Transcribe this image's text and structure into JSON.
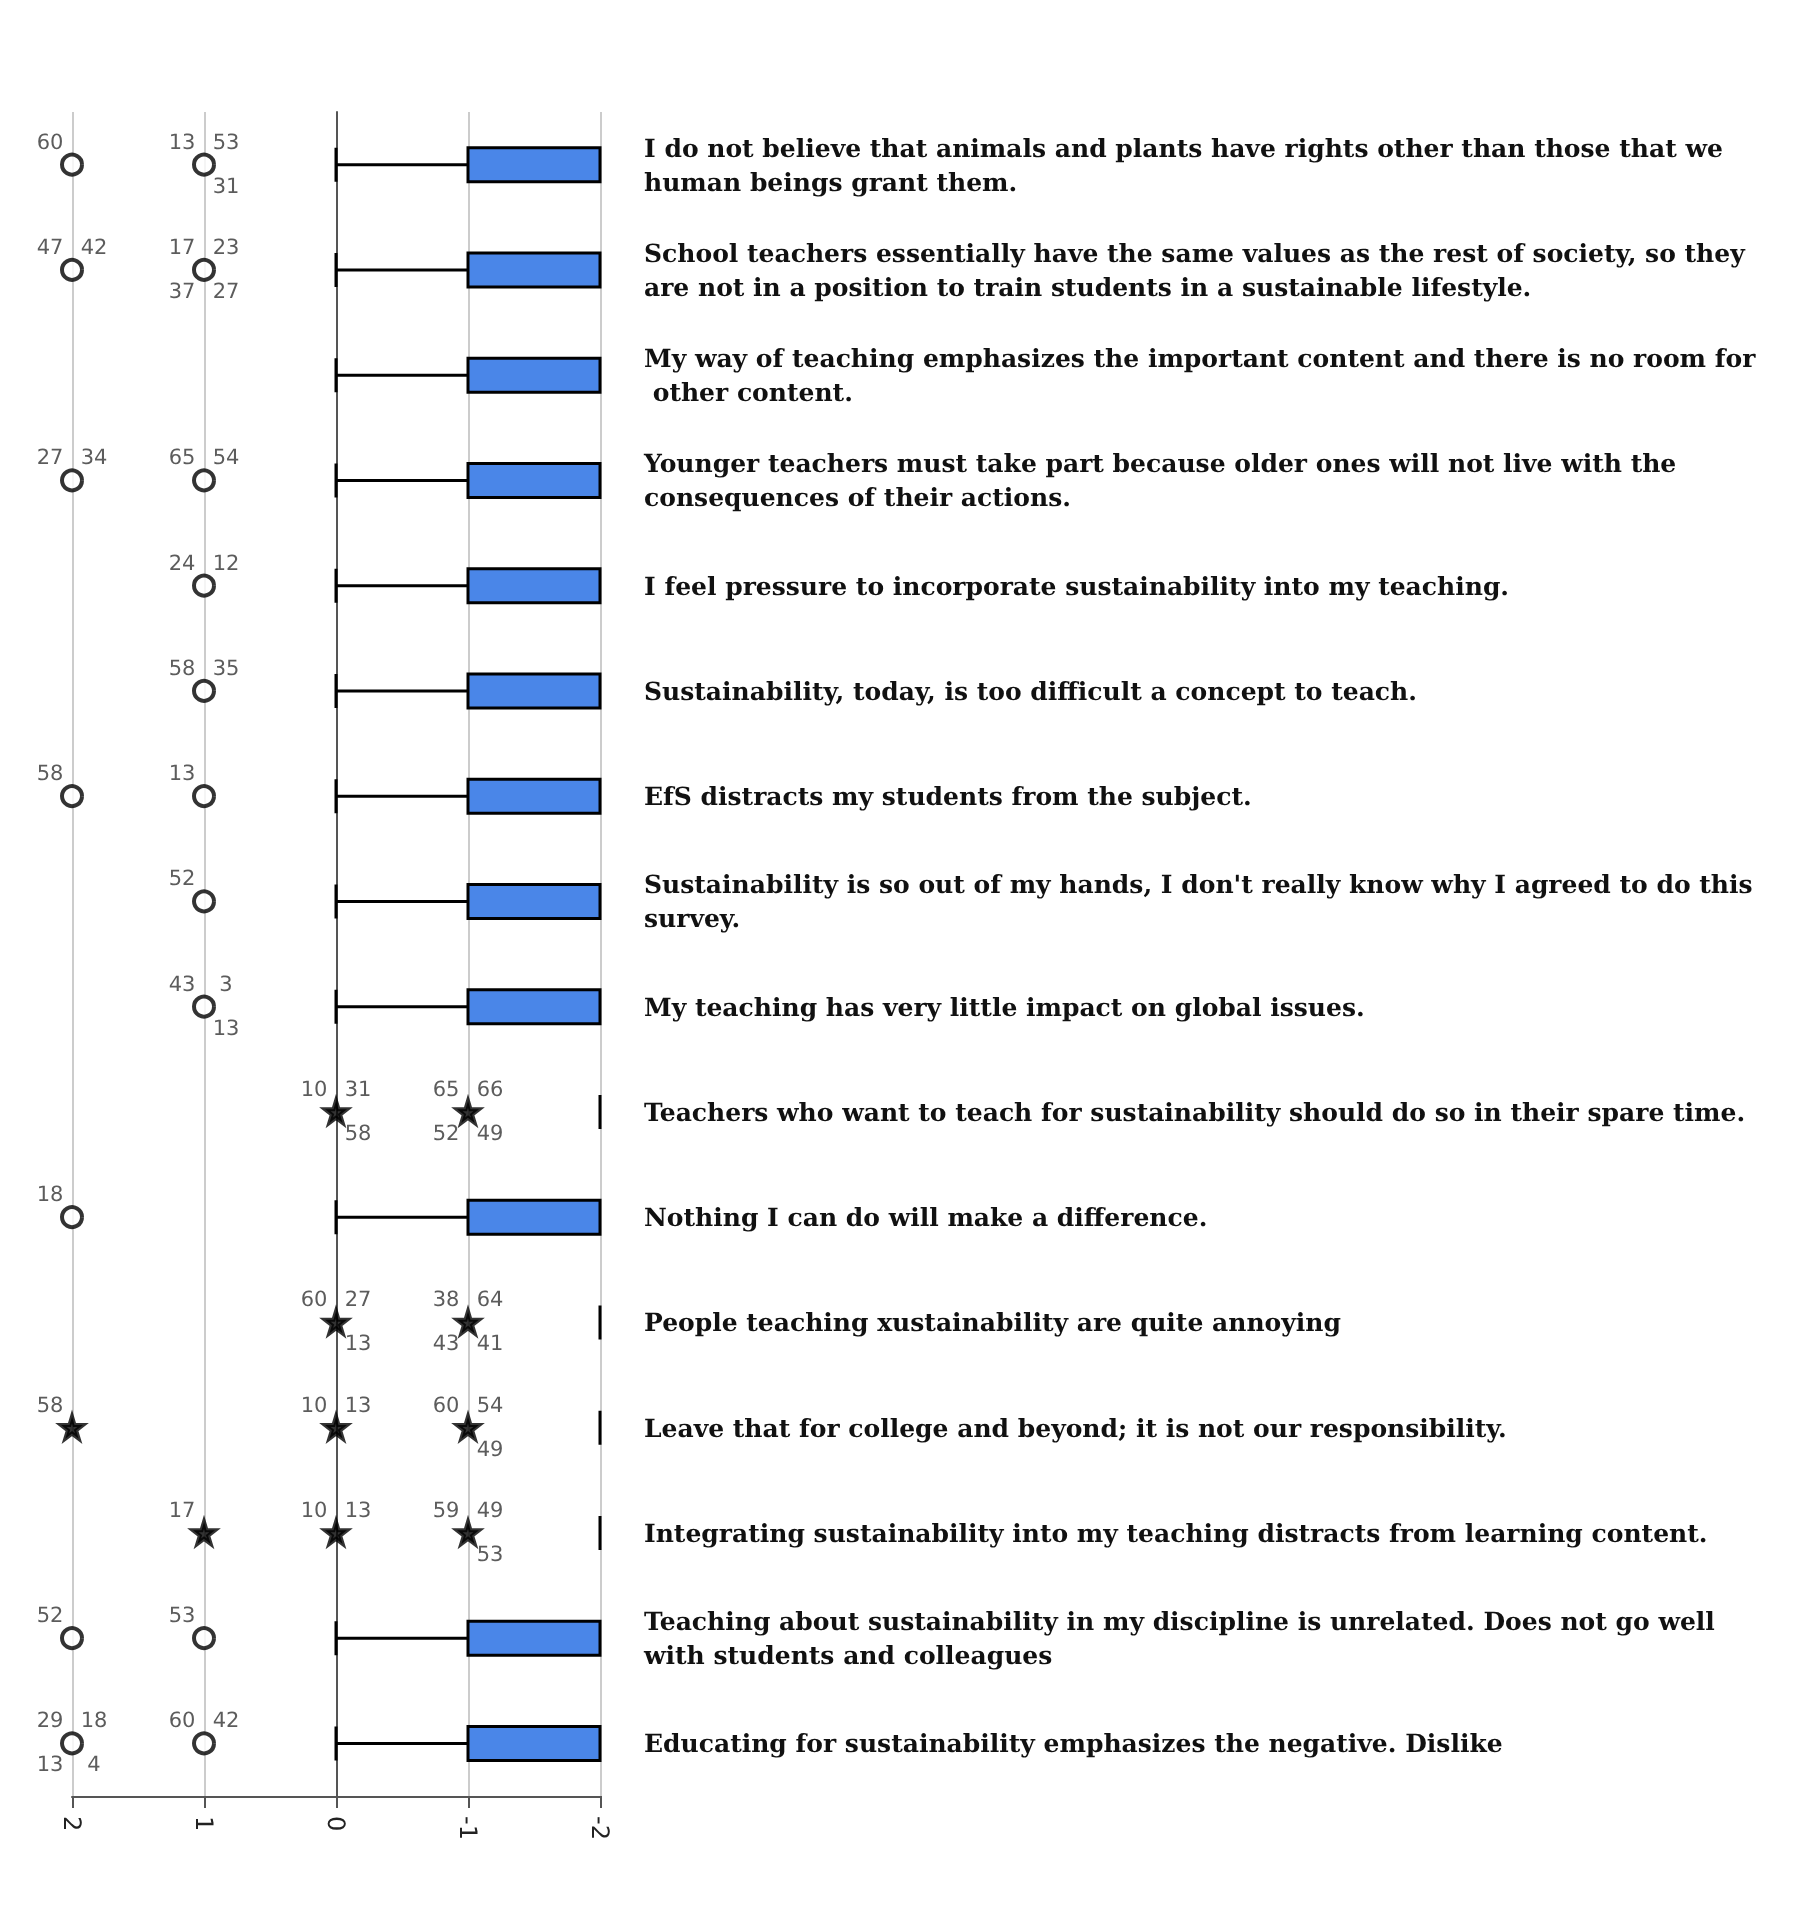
{
  "chart_data": {
    "type": "box",
    "orientation": "horizontal",
    "colors": [
      "#4a86e8",
      "#4a86e8",
      "#4a86e8",
      "#4a86e8",
      "#4a86e8",
      "#4a86e8",
      "#4a86e8",
      "#4a86e8",
      "#4a86e8",
      "#000000",
      "#4a86e8",
      "#000000",
      "#000000",
      "#000000",
      "#4a86e8",
      "#4a86e8"
    ],
    "grid": "x",
    "categories": [
      "I do not believe that animals and plants have rights other than those that we human beings grant them.",
      "School teachers essentially have the same values as the rest of society, so they are not in a position to train students in a sustainable lifestyle.",
      "My way of teaching emphasizes the important content and there is no room for other content.",
      "Younger teachers must take part because older ones will not live with the consequences of their actions.",
      "I feel pressure to incorporate sustainability into my teaching.",
      "Sustainability, today, is too difficult a concept to teach.",
      "EfS distracts my students from the subject.",
      "Sustainability is so out of my hands, I don't really know why I agreed to do this survey.",
      "My teaching has very little impact on global issues.",
      "Teachers who want to teach for sustainability should do so in their spare time.",
      "Nothing I can do will make a difference.",
      "People teaching xustainability are quite annoying",
      "Leave that for college and beyond; it is not our responsibility.",
      "Integrating sustainability into my teaching distracts from learning content.",
      "Teaching about sustainability in my discipline is unrelated. Does not go well with students and colleagues",
      "Educating for sustainability emphasizes the negative. Dislike"
    ],
    "xlim": [
      2,
      -2
    ],
    "xticks": [
      2,
      1,
      0,
      -1,
      -2
    ],
    "boxes": [
      {
        "low": -2,
        "q1": -2,
        "median": -2,
        "q3": -1,
        "high": 0
      },
      {
        "low": -2,
        "q1": -2,
        "median": -2,
        "q3": -1,
        "high": 0
      },
      {
        "low": -2,
        "q1": -2,
        "median": -2,
        "q3": -1,
        "high": 0
      },
      {
        "low": -2,
        "q1": -2,
        "median": -2,
        "q3": -1,
        "high": 0
      },
      {
        "low": -2,
        "q1": -2,
        "median": -2,
        "q3": -1,
        "high": 0
      },
      {
        "low": -2,
        "q1": -2,
        "median": -2,
        "q3": -1,
        "high": 0
      },
      {
        "low": -2,
        "q1": -2,
        "median": -2,
        "q3": -1,
        "high": 0
      },
      {
        "low": -2,
        "q1": -2,
        "median": -2,
        "q3": -1,
        "high": 0
      },
      {
        "low": -2,
        "q1": -2,
        "median": -2,
        "q3": -1,
        "high": 0
      },
      {
        "low": -2,
        "q1": -2,
        "median": -2,
        "q3": -2,
        "high": -2
      },
      {
        "low": -2,
        "q1": -2,
        "median": -2,
        "q3": -1,
        "high": 0
      },
      {
        "low": -2,
        "q1": -2,
        "median": -2,
        "q3": -2,
        "high": -2
      },
      {
        "low": -2,
        "q1": -2,
        "median": -2,
        "q3": -2,
        "high": -2
      },
      {
        "low": -2,
        "q1": -2,
        "median": -2,
        "q3": -2,
        "high": -2
      },
      {
        "low": -2,
        "q1": -2,
        "median": -2,
        "q3": -1,
        "high": 0
      },
      {
        "low": -2,
        "q1": -2,
        "median": -2,
        "q3": -1,
        "high": 0
      }
    ],
    "series": [
      {
        "type": "scatter",
        "marker": "circle",
        "color": "#000000",
        "x": [
          "I do not believe that animals and plants have rights other than those that we human beings grant them.",
          "I do not believe that animals and plants have rights other than those that we human beings grant them.",
          "School teachers essentially have the same values as the rest of society, so they are not in a position to train students in a sustainable lifestyle.",
          "School teachers essentially have the same values as the rest of society, so they are not in a position to train students in a sustainable lifestyle.",
          "Younger teachers must take part because older ones will not live with the consequences of their actions.",
          "Younger teachers must take part because older ones will not live with the consequences of their actions.",
          "I feel pressure to incorporate sustainability into my teaching.",
          "Sustainability, today, is too difficult a concept to teach.",
          "EfS distracts my students from the subject.",
          "EfS distracts my students from the subject.",
          "Sustainability is so out of my hands, I don't really know why I agreed to do this survey.",
          "My teaching has very little impact on global issues.",
          "Nothing I can do will make a difference.",
          "Teaching about sustainability in my discipline is unrelated. Does not go well with students and colleagues",
          "Teaching about sustainability in my discipline is unrelated. Does not go well with students and colleagues",
          "Educating for sustainability emphasizes the negative. Dislike",
          "Educating for sustainability emphasizes the negative. Dislike"
        ],
        "values": [
          2,
          1,
          2,
          1,
          2,
          1,
          1,
          1,
          2,
          1,
          1,
          1,
          2,
          2,
          1,
          2,
          1
        ]
      },
      {
        "type": "scatter",
        "marker": "star",
        "color": "#000000",
        "x": [
          "Teachers who want to teach for sustainability should do so in their spare time.",
          "Teachers who want to teach for sustainability should do so in their spare time.",
          "People teaching xustainability are quite annoying",
          "People teaching xustainability are quite annoying",
          "Leave that for college and beyond; it is not our responsibility.",
          "Leave that for college and beyond; it is not our responsibility.",
          "Leave that for college and beyond; it is not our responsibility.",
          "Integrating sustainability into my teaching distracts from learning content.",
          "Integrating sustainability into my teaching distracts from learning content.",
          "Integrating sustainability into my teaching distracts from learning content."
        ],
        "values": [
          0,
          -1,
          0,
          -1,
          2,
          0,
          -1,
          1,
          0,
          -1
        ]
      }
    ],
    "annotations": [
      {
        "text": "60",
        "x": 2,
        "y": "I do not believe that animals and plants have rights other than those that we human beings grant them."
      },
      {
        "text": "13",
        "x": 1,
        "y": "I do not believe that animals and plants have rights other than those that we human beings grant them."
      },
      {
        "text": "53",
        "x": 1,
        "y": "I do not believe that animals and plants have rights other than those that we human beings grant them."
      },
      {
        "text": "31",
        "x": 1,
        "y": "I do not believe that animals and plants have rights other than those that we human beings grant them."
      },
      {
        "text": "47",
        "x": 2,
        "y": "School teachers essentially have the same values as the rest of society, so they are not in a position to train students in a sustainable lifestyle."
      },
      {
        "text": "42",
        "x": 2,
        "y": "School teachers essentially have the same values as the rest of society, so they are not in a position to train students in a sustainable lifestyle."
      },
      {
        "text": "17",
        "x": 1,
        "y": "School teachers essentially have the same values as the rest of society, so they are not in a position to train students in a sustainable lifestyle."
      },
      {
        "text": "23",
        "x": 1,
        "y": "School teachers essentially have the same values as the rest of society, so they are not in a position to train students in a sustainable lifestyle."
      },
      {
        "text": "27",
        "x": 1,
        "y": "School teachers essentially have the same values as the rest of society, so they are not in a position to train students in a sustainable lifestyle."
      },
      {
        "text": "37",
        "x": 1,
        "y": "School teachers essentially have the same values as the rest of society, so they are not in a position to train students in a sustainable lifestyle."
      },
      {
        "text": "27",
        "x": 2,
        "y": "Younger teachers must take part because older ones will not live with the consequences of their actions."
      },
      {
        "text": "34",
        "x": 2,
        "y": "Younger teachers must take part because older ones will not live with the consequences of their actions."
      },
      {
        "text": "65",
        "x": 1,
        "y": "Younger teachers must take part because older ones will not live with the consequences of their actions."
      },
      {
        "text": "54",
        "x": 1,
        "y": "Younger teachers must take part because older ones will not live with the consequences of their actions."
      },
      {
        "text": "24",
        "x": 1,
        "y": "I feel pressure to incorporate sustainability into my teaching."
      },
      {
        "text": "12",
        "x": 1,
        "y": "I feel pressure to incorporate sustainability into my teaching."
      },
      {
        "text": "58",
        "x": 1,
        "y": "Sustainability, today, is too difficult a concept to teach."
      },
      {
        "text": "35",
        "x": 1,
        "y": "Sustainability, today, is too difficult a concept to teach."
      },
      {
        "text": "58",
        "x": 2,
        "y": "EfS distracts my students from the subject."
      },
      {
        "text": "13",
        "x": 1,
        "y": "EfS distracts my students from the subject."
      },
      {
        "text": "52",
        "x": 1,
        "y": "Sustainability is so out of my hands, I don't really know why I agreed to do this survey."
      },
      {
        "text": "43",
        "x": 1,
        "y": "My teaching has very little impact on global issues."
      },
      {
        "text": "3",
        "x": 1,
        "y": "My teaching has very little impact on global issues."
      },
      {
        "text": "13",
        "x": 1,
        "y": "My teaching has very little impact on global issues."
      },
      {
        "text": "10",
        "x": 0,
        "y": "Teachers who want to teach for sustainability should do so in their spare time."
      },
      {
        "text": "31",
        "x": 0,
        "y": "Teachers who want to teach for sustainability should do so in their spare time."
      },
      {
        "text": "58",
        "x": 0,
        "y": "Teachers who want to teach for sustainability should do so in their spare time."
      },
      {
        "text": "65",
        "x": -1,
        "y": "Teachers who want to teach for sustainability should do so in their spare time."
      },
      {
        "text": "66",
        "x": -1,
        "y": "Teachers who want to teach for sustainability should do so in their spare time."
      },
      {
        "text": "49",
        "x": -1,
        "y": "Teachers who want to teach for sustainability should do so in their spare time."
      },
      {
        "text": "52",
        "x": -1,
        "y": "Teachers who want to teach for sustainability should do so in their spare time."
      },
      {
        "text": "18",
        "x": 2,
        "y": "Nothing I can do will make a difference."
      },
      {
        "text": "60",
        "x": 0,
        "y": "People teaching xustainability are quite annoying"
      },
      {
        "text": "27",
        "x": 0,
        "y": "People teaching xustainability are quite annoying"
      },
      {
        "text": "13",
        "x": 0,
        "y": "People teaching xustainability are quite annoying"
      },
      {
        "text": "38",
        "x": -1,
        "y": "People teaching xustainability are quite annoying"
      },
      {
        "text": "64",
        "x": -1,
        "y": "People teaching xustainability are quite annoying"
      },
      {
        "text": "41",
        "x": -1,
        "y": "People teaching xustainability are quite annoying"
      },
      {
        "text": "43",
        "x": -1,
        "y": "People teaching xustainability are quite annoying"
      },
      {
        "text": "58",
        "x": 2,
        "y": "Leave that for college and beyond; it is not our responsibility."
      },
      {
        "text": "10",
        "x": 0,
        "y": "Leave that for college and beyond; it is not our responsibility."
      },
      {
        "text": "13",
        "x": 0,
        "y": "Leave that for college and beyond; it is not our responsibility."
      },
      {
        "text": "60",
        "x": -1,
        "y": "Leave that for college and beyond; it is not our responsibility."
      },
      {
        "text": "54",
        "x": -1,
        "y": "Leave that for college and beyond; it is not our responsibility."
      },
      {
        "text": "49",
        "x": -1,
        "y": "Leave that for college and beyond; it is not our responsibility."
      },
      {
        "text": "17",
        "x": 1,
        "y": "Integrating sustainability into my teaching distracts from learning content."
      },
      {
        "text": "10",
        "x": 0,
        "y": "Integrating sustainability into my teaching distracts from learning content."
      },
      {
        "text": "13",
        "x": 0,
        "y": "Integrating sustainability into my teaching distracts from learning content."
      },
      {
        "text": "59",
        "x": -1,
        "y": "Integrating sustainability into my teaching distracts from learning content."
      },
      {
        "text": "49",
        "x": -1,
        "y": "Integrating sustainability into my teaching distracts from learning content."
      },
      {
        "text": "53",
        "x": -1,
        "y": "Integrating sustainability into my teaching distracts from learning content."
      },
      {
        "text": "52",
        "x": 2,
        "y": "Teaching about sustainability in my discipline is unrelated. Does not go well with students and colleagues"
      },
      {
        "text": "53",
        "x": 1,
        "y": "Teaching about sustainability in my discipline is unrelated. Does not go well with students and colleagues"
      },
      {
        "text": "29",
        "x": 2,
        "y": "Educating for sustainability emphasizes the negative. Dislike"
      },
      {
        "text": "18",
        "x": 2,
        "y": "Educating for sustainability emphasizes the negative. Dislike"
      },
      {
        "text": "4",
        "x": 2,
        "y": "Educating for sustainability emphasizes the negative. Dislike"
      },
      {
        "text": "13",
        "x": 2,
        "y": "Educating for sustainability emphasizes the negative. Dislike"
      },
      {
        "text": "60",
        "x": 1,
        "y": "Educating for sustainability emphasizes the negative. Dislike"
      },
      {
        "text": "42",
        "x": 1,
        "y": "Educating for sustainability emphasizes the negative. Dislike"
      }
    ]
  }
}
